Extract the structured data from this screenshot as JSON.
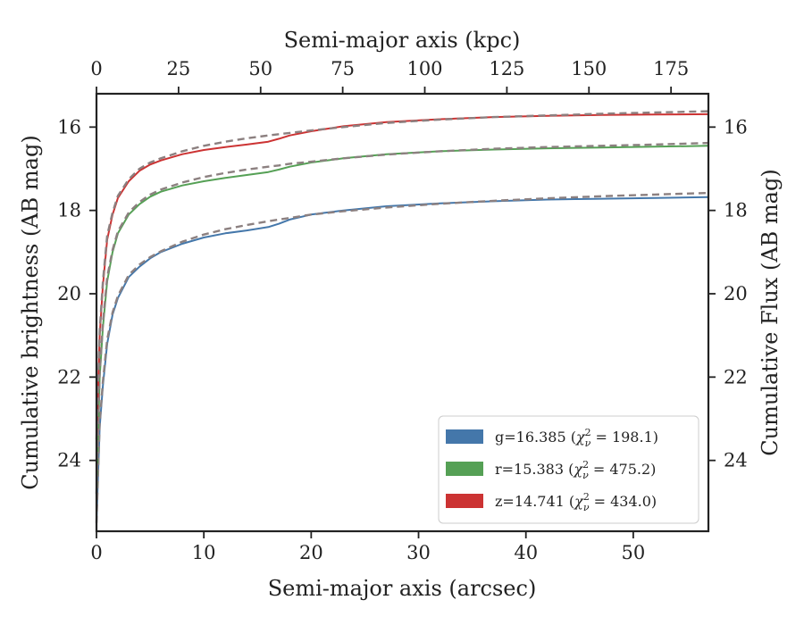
{
  "chart_data": {
    "type": "line",
    "xlabel": "Semi-major axis (arcsec)",
    "xlabel_top": "Semi-major axis (kpc)",
    "ylabel": "Cumulative brightness (AB mag)",
    "ylabel_right": "Cumulative Flux (AB mag)",
    "xlim": [
      0,
      57
    ],
    "ylim": [
      25.7,
      15.2
    ],
    "y_inverted": true,
    "xticks": [
      "0",
      "10",
      "20",
      "30",
      "40",
      "50"
    ],
    "xticks_top": [
      "0",
      "25",
      "50",
      "75",
      "100",
      "125",
      "150",
      "175"
    ],
    "yticks": [
      "16",
      "18",
      "20",
      "22",
      "24"
    ],
    "kpc_per_arcsec": 3.27,
    "grid": false,
    "legend_position": "lower-right",
    "series": [
      {
        "name": "g=16.385 (χ²ᵥ=198.1)",
        "legend_prefix": "g=16.385 (",
        "legend_chi": "χ",
        "legend_sup": "2",
        "legend_sub": "ν",
        "legend_value": " = 198.1)",
        "color": "#4477aa",
        "x": [
          0,
          0.3,
          0.6,
          1,
          1.5,
          2,
          3,
          4,
          5,
          6,
          8,
          10,
          12,
          14,
          16,
          17,
          18,
          20,
          23,
          27,
          32,
          37,
          42,
          47,
          52,
          57
        ],
        "y": [
          25.5,
          23.2,
          22.2,
          21.2,
          20.5,
          20.1,
          19.6,
          19.35,
          19.15,
          19.0,
          18.8,
          18.65,
          18.55,
          18.48,
          18.4,
          18.32,
          18.22,
          18.1,
          18.0,
          17.9,
          17.83,
          17.78,
          17.74,
          17.72,
          17.7,
          17.68
        ],
        "model_y": [
          25.5,
          23.1,
          22.1,
          21.1,
          20.45,
          20.05,
          19.55,
          19.3,
          19.12,
          18.98,
          18.75,
          18.58,
          18.45,
          18.35,
          18.26,
          18.22,
          18.18,
          18.1,
          18.02,
          17.93,
          17.84,
          17.77,
          17.71,
          17.66,
          17.62,
          17.58
        ]
      },
      {
        "name": "r=15.383 (χ²ᵥ=475.2)",
        "legend_prefix": "r=15.383 (",
        "legend_chi": "χ",
        "legend_sup": "2",
        "legend_sub": "ν",
        "legend_value": " = 475.2)",
        "color": "#55a055",
        "x": [
          0,
          0.3,
          0.6,
          1,
          1.5,
          2,
          3,
          4,
          5,
          6,
          8,
          10,
          12,
          14,
          16,
          17,
          18,
          20,
          23,
          27,
          32,
          37,
          42,
          47,
          52,
          57
        ],
        "y": [
          24.8,
          22.0,
          20.8,
          19.7,
          19.0,
          18.55,
          18.1,
          17.85,
          17.67,
          17.55,
          17.4,
          17.3,
          17.22,
          17.15,
          17.08,
          17.02,
          16.95,
          16.85,
          16.75,
          16.65,
          16.58,
          16.54,
          16.51,
          16.49,
          16.47,
          16.45
        ],
        "model_y": [
          24.8,
          21.9,
          20.7,
          19.6,
          18.95,
          18.5,
          18.05,
          17.8,
          17.62,
          17.5,
          17.33,
          17.2,
          17.1,
          17.02,
          16.95,
          16.92,
          16.88,
          16.83,
          16.75,
          16.66,
          16.58,
          16.52,
          16.48,
          16.45,
          16.42,
          16.38
        ]
      },
      {
        "name": "z=14.741 (χ²ᵥ=434.0)",
        "legend_prefix": "z=14.741 (",
        "legend_chi": "χ",
        "legend_sup": "2",
        "legend_sub": "ν",
        "legend_value": " = 434.0)",
        "color": "#cc3333",
        "x": [
          0,
          0.3,
          0.6,
          1,
          1.5,
          2,
          3,
          4,
          5,
          6,
          8,
          10,
          12,
          14,
          16,
          17,
          18,
          20,
          23,
          27,
          32,
          37,
          42,
          47,
          52,
          57
        ],
        "y": [
          23.5,
          21.0,
          19.8,
          18.7,
          18.1,
          17.7,
          17.3,
          17.05,
          16.9,
          16.8,
          16.65,
          16.55,
          16.48,
          16.42,
          16.35,
          16.28,
          16.2,
          16.1,
          15.98,
          15.88,
          15.81,
          15.76,
          15.73,
          15.71,
          15.7,
          15.69
        ],
        "model_y": [
          23.5,
          20.9,
          19.7,
          18.6,
          18.05,
          17.65,
          17.25,
          17.0,
          16.85,
          16.75,
          16.58,
          16.45,
          16.35,
          16.27,
          16.2,
          16.17,
          16.14,
          16.08,
          16.0,
          15.9,
          15.82,
          15.76,
          15.72,
          15.68,
          15.65,
          15.62
        ]
      }
    ],
    "model_color": "#8c8080"
  }
}
